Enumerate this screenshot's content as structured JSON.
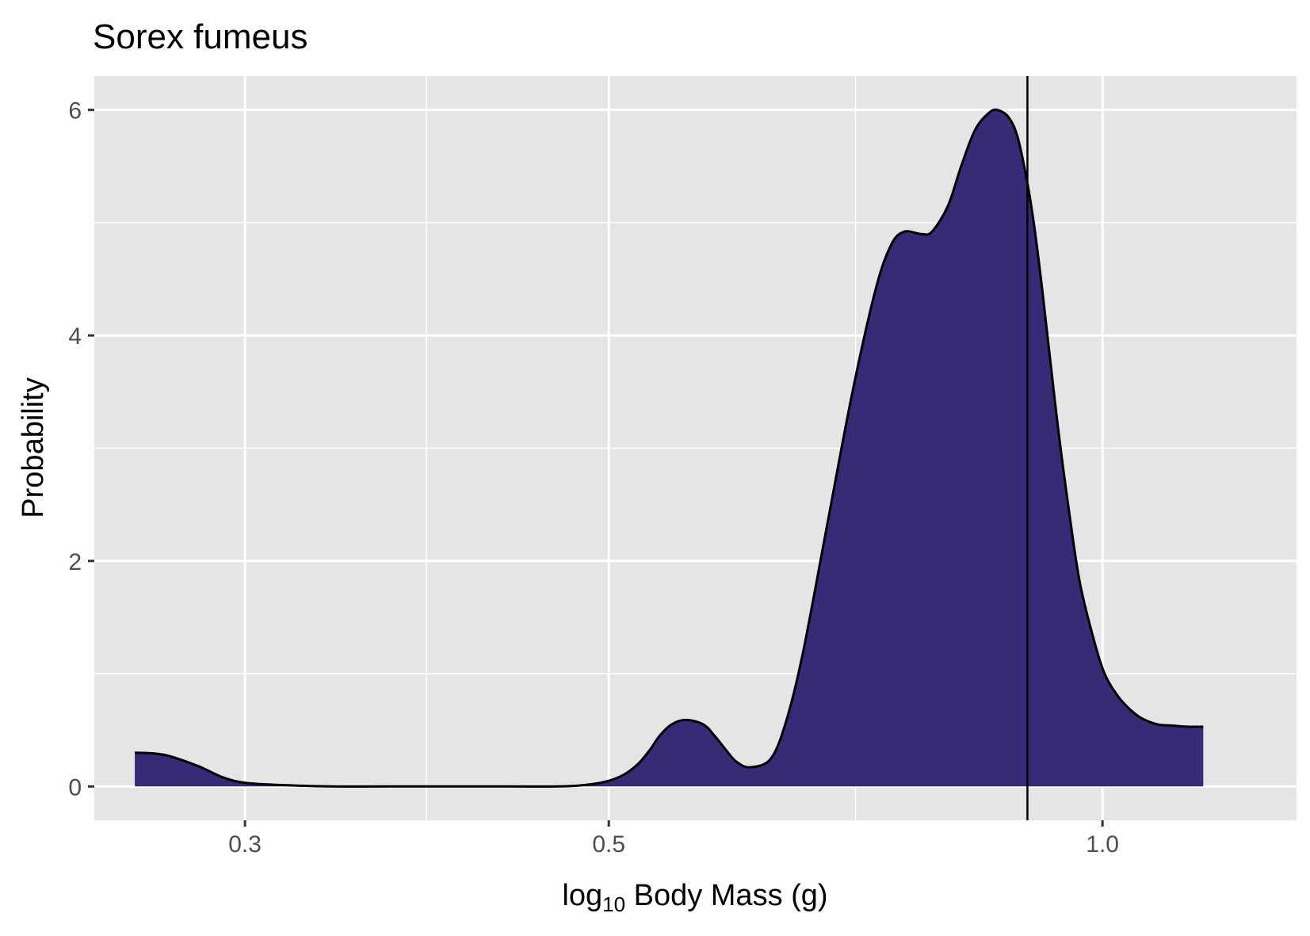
{
  "chart_data": {
    "type": "area",
    "title": "Sorex fumeus",
    "xlabel": "log10 Body Mass (g)",
    "xlabel_parts": {
      "pre": "log",
      "sub": "10",
      "post": " Body Mass (g)"
    },
    "ylabel": "Probability",
    "x_scale": "log10",
    "xlim": [
      0.2428,
      1.3132
    ],
    "ylim": [
      -0.3,
      6.3
    ],
    "x_ticks": [
      0.3,
      0.5,
      1.0
    ],
    "x_tick_labels": [
      "0.3",
      "0.5",
      "1.0"
    ],
    "x_minor_ticks": [
      0.387,
      0.707
    ],
    "y_ticks": [
      0,
      2,
      4,
      6
    ],
    "y_tick_labels": [
      "0",
      "2",
      "4",
      "6"
    ],
    "y_minor_ticks": [
      1,
      3,
      5
    ],
    "grid": true,
    "vline_x": 0.9,
    "fill_color": "#372a77",
    "line_color": "#000000",
    "panel_bg": "#e5e5e5",
    "grid_color": "#ffffff",
    "density": {
      "x": [
        0.257,
        0.268,
        0.281,
        0.291,
        0.301,
        0.32,
        0.339,
        0.37,
        0.427,
        0.465,
        0.481,
        0.497,
        0.51,
        0.521,
        0.53,
        0.537,
        0.546,
        0.557,
        0.571,
        0.58,
        0.589,
        0.598,
        0.61,
        0.628,
        0.642,
        0.657,
        0.681,
        0.704,
        0.727,
        0.743,
        0.757,
        0.775,
        0.787,
        0.805,
        0.82,
        0.836,
        0.852,
        0.863,
        0.877,
        0.888,
        0.9,
        0.909,
        0.919,
        0.929,
        0.941,
        0.955,
        0.969,
        0.988,
        1.003,
        1.022,
        1.04,
        1.058,
        1.081,
        1.104,
        1.126,
        1.152
      ],
      "y": [
        0.3,
        0.28,
        0.18,
        0.08,
        0.03,
        0.01,
        0.0,
        0.0,
        0.0,
        0.0,
        0.01,
        0.04,
        0.1,
        0.2,
        0.33,
        0.45,
        0.55,
        0.59,
        0.55,
        0.45,
        0.33,
        0.22,
        0.17,
        0.25,
        0.6,
        1.2,
        2.4,
        3.5,
        4.4,
        4.8,
        4.92,
        4.9,
        4.92,
        5.15,
        5.5,
        5.82,
        5.97,
        6.0,
        5.93,
        5.75,
        5.35,
        4.95,
        4.4,
        3.8,
        3.1,
        2.4,
        1.8,
        1.3,
        1.0,
        0.8,
        0.68,
        0.6,
        0.55,
        0.54,
        0.53,
        0.53
      ]
    }
  }
}
